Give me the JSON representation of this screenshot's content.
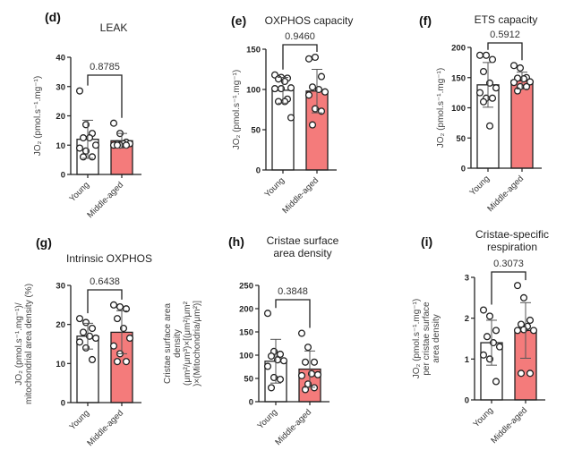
{
  "colors": {
    "young_fill": "#ffffff",
    "middle_aged_fill": "#f47b7b",
    "stroke": "#222222",
    "point_fill": "#ffffff"
  },
  "chart_data": [
    {
      "id": "d",
      "type": "bar",
      "panel_label": "(d)",
      "title": [
        "LEAK"
      ],
      "ylabel": [
        "JO₂ (pmol.s⁻¹.mg⁻¹)"
      ],
      "ylim": [
        0,
        40
      ],
      "yticks": [
        0,
        10,
        20,
        30,
        40
      ],
      "categories": [
        "Young",
        "Middle-aged"
      ],
      "series": [
        {
          "name": "Young",
          "mean": 12,
          "sd": 6.5,
          "points": [
            28.5,
            17,
            14,
            12.5,
            12.5,
            10,
            9,
            8,
            6,
            6
          ]
        },
        {
          "name": "Middle-aged",
          "mean": 11.5,
          "sd": 2.5,
          "points": [
            17.5,
            14,
            11,
            10.5,
            10.5,
            10.5,
            10,
            10,
            10,
            10
          ]
        }
      ],
      "p_value": "0.8785"
    },
    {
      "id": "e",
      "type": "bar",
      "panel_label": "(e)",
      "title": [
        "OXPHOS capacity"
      ],
      "ylabel": [
        "JO₂ (pmol.s⁻¹.mg⁻¹)"
      ],
      "ylim": [
        0,
        150
      ],
      "yticks": [
        0,
        50,
        100,
        150
      ],
      "categories": [
        "Young",
        "Middle-aged"
      ],
      "series": [
        {
          "name": "Young",
          "mean": 99,
          "sd": 16,
          "points": [
            118,
            115,
            114,
            113,
            110,
            102,
            101,
            101,
            88,
            85,
            85,
            65
          ]
        },
        {
          "name": "Middle-aged",
          "mean": 98,
          "sd": 27,
          "points": [
            138,
            140,
            116,
            103,
            100,
            97,
            93,
            76,
            73,
            56
          ]
        }
      ],
      "p_value": "0.9460"
    },
    {
      "id": "f",
      "type": "bar",
      "panel_label": "(f)",
      "title": [
        "ETS capacity"
      ],
      "ylabel": [
        "JO₂ (pmol.s⁻¹.mg⁻¹)"
      ],
      "ylim": [
        0,
        200
      ],
      "yticks": [
        0,
        50,
        100,
        150,
        200
      ],
      "categories": [
        "Young",
        "Middle-aged"
      ],
      "series": [
        {
          "name": "Young",
          "mean": 138,
          "sd": 37,
          "points": [
            187,
            187,
            180,
            160,
            141,
            133,
            125,
            116,
            116,
            110,
            70
          ]
        },
        {
          "name": "Middle-aged",
          "mean": 145,
          "sd": 14,
          "points": [
            170,
            166,
            150,
            149,
            148,
            143,
            142,
            135,
            135,
            128
          ]
        }
      ],
      "p_value": "0.5912"
    },
    {
      "id": "g",
      "type": "bar",
      "panel_label": "(g)",
      "title": [
        "Intrinsic OXPHOS"
      ],
      "ylabel": [
        "JO₂ (pmol.s⁻¹.mg⁻¹)/",
        "mitochondrial area density (%)"
      ],
      "ylim": [
        0,
        30
      ],
      "yticks": [
        0,
        10,
        20,
        30
      ],
      "categories": [
        "Young",
        "Middle-aged"
      ],
      "series": [
        {
          "name": "Young",
          "mean": 17,
          "sd": 3.3,
          "points": [
            21.5,
            20.5,
            19,
            18,
            17,
            16.5,
            15.5,
            14,
            11
          ]
        },
        {
          "name": "Middle-aged",
          "mean": 18,
          "sd": 5.5,
          "points": [
            25,
            24.5,
            24,
            21.5,
            19,
            16.5,
            14.5,
            12.5,
            10.5,
            10.5
          ]
        }
      ],
      "p_value": "0.6438"
    },
    {
      "id": "h",
      "type": "bar",
      "panel_label": "(h)",
      "title": [
        "Cristae surface",
        "area density"
      ],
      "ylabel": [
        "Cristae surface area",
        "density",
        "(μm²/μm³)×[(μm²/μm²",
        ")×(Mitochondria/μm²)]"
      ],
      "ylim": [
        0,
        250
      ],
      "yticks": [
        0,
        50,
        100,
        150,
        200,
        250
      ],
      "categories": [
        "Young",
        "Middle-aged"
      ],
      "series": [
        {
          "name": "Young",
          "mean": 87,
          "sd": 47,
          "points": [
            190,
            108,
            102,
            98,
            90,
            88,
            76,
            52,
            48,
            30
          ]
        },
        {
          "name": "Middle-aged",
          "mean": 70,
          "sd": 39,
          "points": [
            147,
            117,
            85,
            85,
            60,
            58,
            56,
            38,
            30,
            26
          ]
        }
      ],
      "p_value": "0.3848"
    },
    {
      "id": "i",
      "type": "bar",
      "panel_label": "(i)",
      "title": [
        "Cristae-specific",
        "respiration"
      ],
      "ylabel": [
        "JO₂ (pmol.s⁻¹.mg⁻¹)",
        "per cristae surface",
        "area density"
      ],
      "ylim": [
        0,
        3
      ],
      "yticks": [
        0,
        1,
        2,
        3
      ],
      "categories": [
        "Young",
        "Middle-aged"
      ],
      "series": [
        {
          "name": "Young",
          "mean": 1.4,
          "sd": 0.55,
          "points": [
            2.2,
            2.05,
            1.7,
            1.55,
            1.4,
            1.3,
            1.1,
            1.0,
            0.45
          ]
        },
        {
          "name": "Middle-aged",
          "mean": 1.7,
          "sd": 0.68,
          "points": [
            2.8,
            2.5,
            1.95,
            1.85,
            1.8,
            1.7,
            1.7,
            1.72,
            0.65,
            0.65
          ]
        }
      ],
      "p_value": "0.3073"
    }
  ]
}
